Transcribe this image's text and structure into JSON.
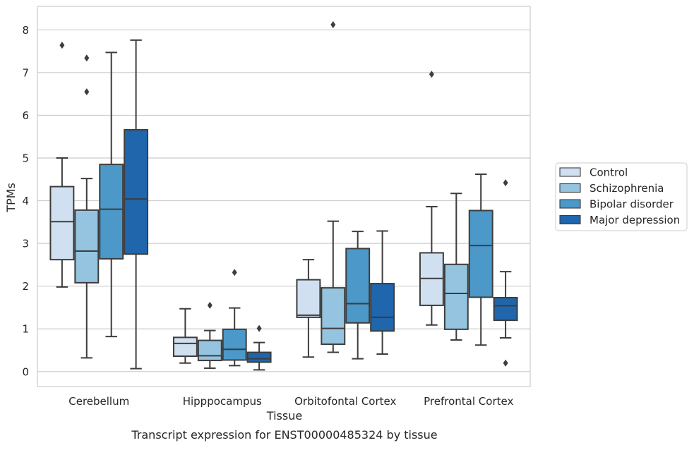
{
  "caption": "Transcript expression for ENST00000485324 by tissue",
  "chart_data": {
    "type": "boxplot",
    "xlabel": "Tissue",
    "ylabel": "TPMs",
    "ylim": [
      -0.35,
      8.55
    ],
    "yticks": [
      0,
      1,
      2,
      3,
      4,
      5,
      6,
      7,
      8
    ],
    "grid": "horizontal",
    "legend_position": "right",
    "categories": [
      "Cerebellum",
      "Hipppocampus",
      "Orbitofontal Cortex",
      "Prefrontal Cortex"
    ],
    "series": [
      {
        "name": "Control",
        "color": "#d0e0f0",
        "boxes": [
          {
            "min": 1.98,
            "q1": 2.62,
            "median": 3.51,
            "q3": 4.33,
            "max": 5.0,
            "outliers": [
              7.64
            ]
          },
          {
            "min": 0.2,
            "q1": 0.36,
            "median": 0.66,
            "q3": 0.8,
            "max": 1.47,
            "outliers": []
          },
          {
            "min": 0.34,
            "q1": 1.27,
            "median": 1.32,
            "q3": 2.15,
            "max": 2.62,
            "outliers": []
          },
          {
            "min": 1.09,
            "q1": 1.55,
            "median": 2.18,
            "q3": 2.78,
            "max": 3.86,
            "outliers": [
              6.96
            ]
          }
        ]
      },
      {
        "name": "Schizophrenia",
        "color": "#94c4df",
        "boxes": [
          {
            "min": 0.32,
            "q1": 2.08,
            "median": 2.82,
            "q3": 3.78,
            "max": 4.52,
            "outliers": [
              6.55,
              7.34
            ]
          },
          {
            "min": 0.08,
            "q1": 0.26,
            "median": 0.37,
            "q3": 0.73,
            "max": 0.96,
            "outliers": [
              1.55
            ]
          },
          {
            "min": 0.45,
            "q1": 0.64,
            "median": 1.01,
            "q3": 1.96,
            "max": 3.52,
            "outliers": [
              8.12
            ]
          },
          {
            "min": 0.74,
            "q1": 0.99,
            "median": 1.83,
            "q3": 2.51,
            "max": 4.17,
            "outliers": []
          }
        ]
      },
      {
        "name": "Bipolar disorder",
        "color": "#4b98c9",
        "boxes": [
          {
            "min": 0.82,
            "q1": 2.64,
            "median": 3.8,
            "q3": 4.85,
            "max": 7.47,
            "outliers": []
          },
          {
            "min": 0.14,
            "q1": 0.27,
            "median": 0.52,
            "q3": 0.99,
            "max": 1.49,
            "outliers": [
              2.32
            ]
          },
          {
            "min": 0.3,
            "q1": 1.14,
            "median": 1.59,
            "q3": 2.88,
            "max": 3.28,
            "outliers": []
          },
          {
            "min": 0.62,
            "q1": 1.74,
            "median": 2.95,
            "q3": 3.77,
            "max": 4.62,
            "outliers": []
          }
        ]
      },
      {
        "name": "Major depression",
        "color": "#1f66ac",
        "boxes": [
          {
            "min": 0.07,
            "q1": 2.75,
            "median": 4.04,
            "q3": 5.66,
            "max": 7.76,
            "outliers": []
          },
          {
            "min": 0.04,
            "q1": 0.22,
            "median": 0.3,
            "q3": 0.45,
            "max": 0.68,
            "outliers": [
              1.01
            ]
          },
          {
            "min": 0.41,
            "q1": 0.95,
            "median": 1.27,
            "q3": 2.06,
            "max": 3.29,
            "outliers": []
          },
          {
            "min": 0.79,
            "q1": 1.2,
            "median": 1.54,
            "q3": 1.73,
            "max": 2.34,
            "outliers": [
              4.42,
              0.2
            ]
          }
        ]
      }
    ]
  }
}
